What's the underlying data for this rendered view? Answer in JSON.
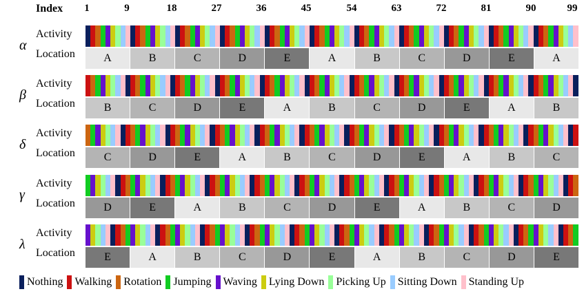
{
  "header": {
    "index_label": "Index",
    "ticks": [
      "1",
      "9",
      "18",
      "27",
      "36",
      "45",
      "54",
      "63",
      "72",
      "81",
      "90",
      "99"
    ]
  },
  "row_labels": {
    "activity": "Activity",
    "location": "Location"
  },
  "colors": {
    "Nothing": "#0a1f5c",
    "Walking": "#cc1111",
    "Rotation": "#cc6611",
    "Jumping": "#11cc22",
    "Waving": "#6611cc",
    "Lying Down": "#cccc11",
    "Picking Up": "#99ff99",
    "Sitting Down": "#99ccff",
    "Standing Up": "#ffc0cb",
    "locA": "#e8e8e8",
    "locB": "#c8c8c8",
    "locC": "#b4b4b4",
    "locD": "#989898",
    "locE": "#787878"
  },
  "groups": [
    {
      "symbol": "α",
      "offset": 0,
      "locations": [
        "A",
        "B",
        "C",
        "D",
        "E",
        "A",
        "B",
        "C",
        "D",
        "E",
        "A"
      ]
    },
    {
      "symbol": "β",
      "offset": 1,
      "locations": [
        "B",
        "C",
        "D",
        "E",
        "A",
        "B",
        "C",
        "D",
        "E",
        "A",
        "B"
      ]
    },
    {
      "symbol": "δ",
      "offset": 2,
      "locations": [
        "C",
        "D",
        "E",
        "A",
        "B",
        "C",
        "D",
        "E",
        "A",
        "B",
        "C"
      ]
    },
    {
      "symbol": "γ",
      "offset": 3,
      "locations": [
        "D",
        "E",
        "A",
        "B",
        "C",
        "D",
        "E",
        "A",
        "B",
        "C",
        "D"
      ]
    },
    {
      "symbol": "λ",
      "offset": 4,
      "locations": [
        "E",
        "A",
        "B",
        "C",
        "D",
        "E",
        "A",
        "B",
        "C",
        "D",
        "E"
      ]
    }
  ],
  "legend": [
    "Nothing",
    "Walking",
    "Rotation",
    "Jumping",
    "Waving",
    "Lying Down",
    "Picking Up",
    "Sitting Down",
    "Standing Up"
  ]
}
